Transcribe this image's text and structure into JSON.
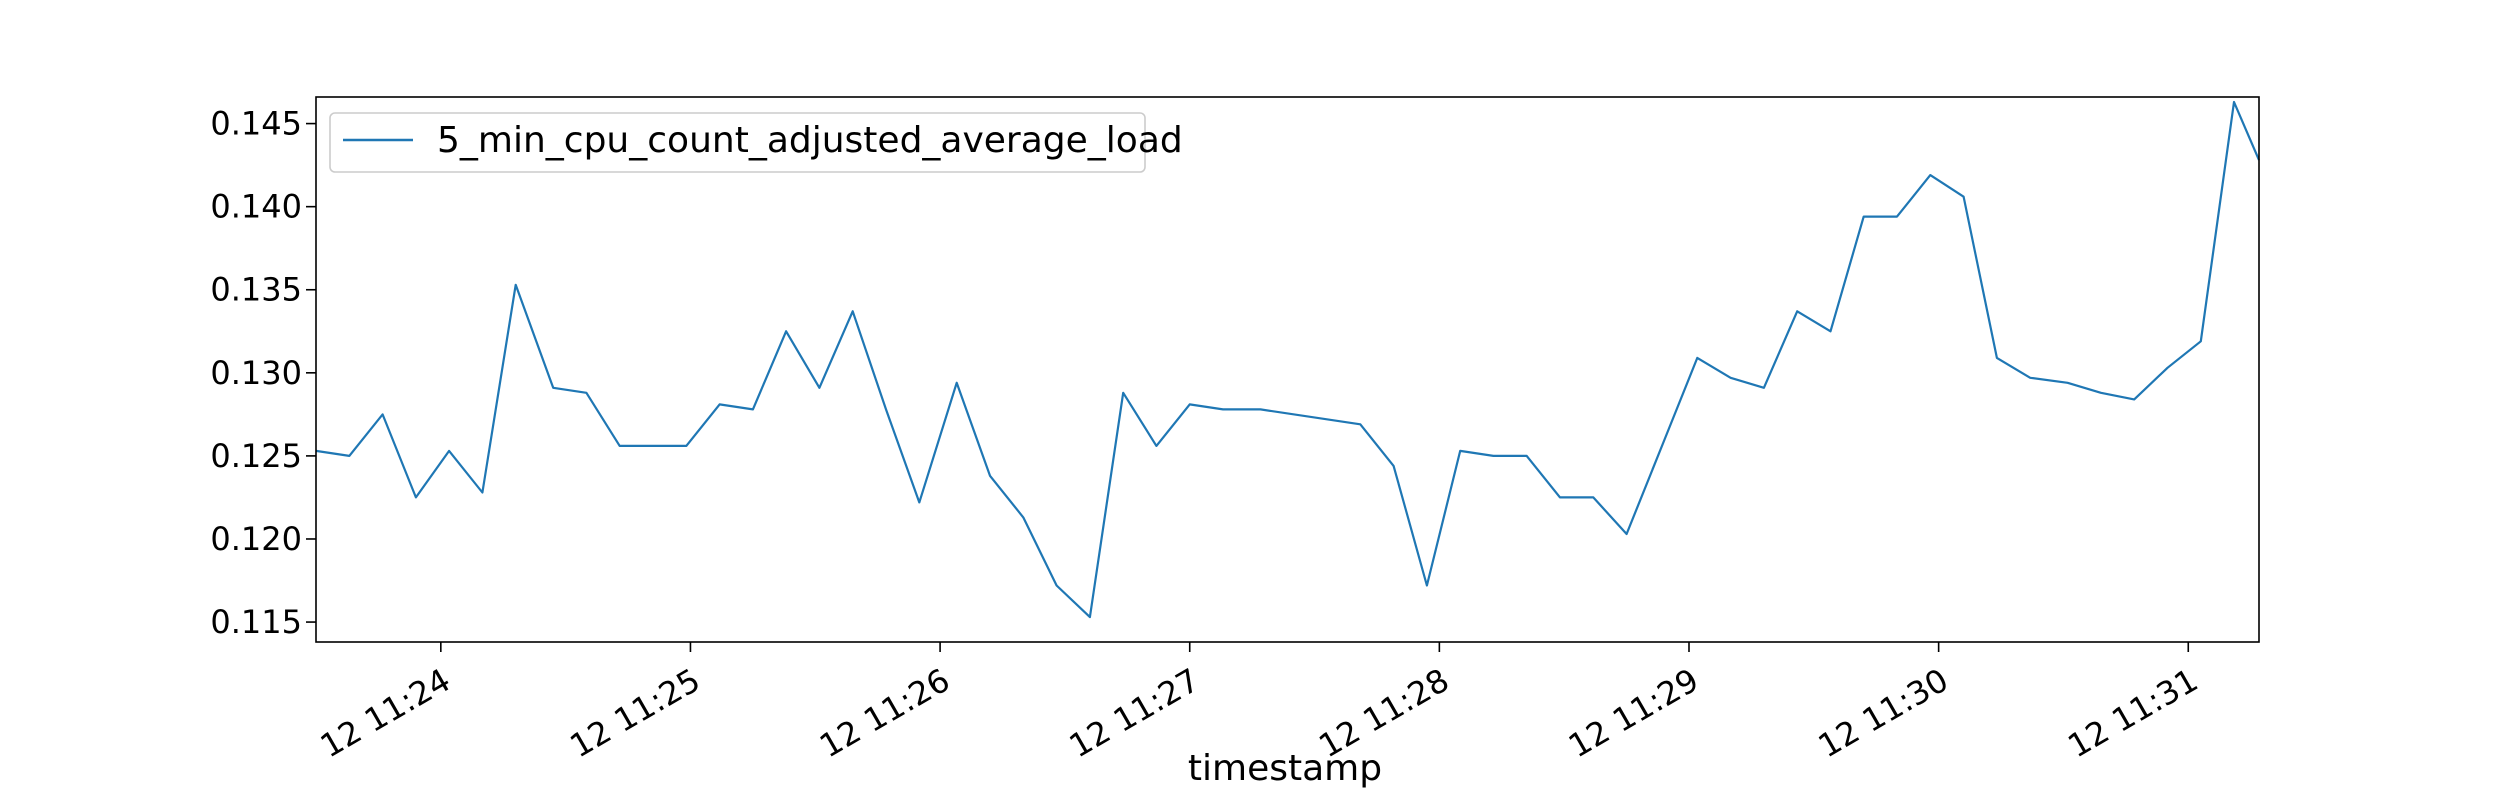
{
  "chart_data": {
    "type": "line",
    "title": "",
    "xlabel": "timestamp",
    "ylabel": "",
    "x_ticks": [
      "12 11:24",
      "12 11:25",
      "12 11:26",
      "12 11:27",
      "12 11:28",
      "12 11:29",
      "12 11:30",
      "12 11:31"
    ],
    "y_ticks": [
      "0.115",
      "0.120",
      "0.125",
      "0.130",
      "0.135",
      "0.140",
      "0.145"
    ],
    "xlim": [
      "12 11:23:30",
      "12 11:31:17"
    ],
    "ylim": [
      0.1138,
      0.1466
    ],
    "grid": false,
    "legend_position": "upper-left",
    "series": [
      {
        "name": "5_min_cpu_count_adjusted_average_load",
        "color": "#1f77b4",
        "points": [
          [
            "12 11:23:30",
            0.1253
          ],
          [
            "12 11:23:38",
            0.125
          ],
          [
            "12 11:23:46",
            0.1275
          ],
          [
            "12 11:23:54",
            0.1225
          ],
          [
            "12 11:24:02",
            0.1253
          ],
          [
            "12 11:24:10",
            0.1228
          ],
          [
            "12 11:24:18",
            0.1353
          ],
          [
            "12 11:24:27",
            0.1291
          ],
          [
            "12 11:24:35",
            0.1288
          ],
          [
            "12 11:24:43",
            0.1256
          ],
          [
            "12 11:24:51",
            0.1256
          ],
          [
            "12 11:24:59",
            0.1256
          ],
          [
            "12 11:25:07",
            0.1281
          ],
          [
            "12 11:25:15",
            0.1278
          ],
          [
            "12 11:25:23",
            0.1325
          ],
          [
            "12 11:25:31",
            0.1291
          ],
          [
            "12 11:25:39",
            0.1337
          ],
          [
            "12 11:25:47",
            0.1278
          ],
          [
            "12 11:25:55",
            0.1222
          ],
          [
            "12 11:26:04",
            0.1294
          ],
          [
            "12 11:26:12",
            0.1238
          ],
          [
            "12 11:26:20",
            0.1213
          ],
          [
            "12 11:26:28",
            0.1172
          ],
          [
            "12 11:26:36",
            0.1153
          ],
          [
            "12 11:26:44",
            0.1288
          ],
          [
            "12 11:26:52",
            0.1256
          ],
          [
            "12 11:27:00",
            0.1281
          ],
          [
            "12 11:27:08",
            0.1278
          ],
          [
            "12 11:27:17",
            0.1278
          ],
          [
            "12 11:27:41",
            0.1269
          ],
          [
            "12 11:27:49",
            0.1244
          ],
          [
            "12 11:27:57",
            0.1172
          ],
          [
            "12 11:28:05",
            0.1253
          ],
          [
            "12 11:28:13",
            0.125
          ],
          [
            "12 11:28:21",
            0.125
          ],
          [
            "12 11:28:29",
            0.1225
          ],
          [
            "12 11:28:37",
            0.1225
          ],
          [
            "12 11:28:45",
            0.1203
          ],
          [
            "12 11:28:54",
            0.1259
          ],
          [
            "12 11:29:02",
            0.1309
          ],
          [
            "12 11:29:10",
            0.1297
          ],
          [
            "12 11:29:18",
            0.1291
          ],
          [
            "12 11:29:26",
            0.1337
          ],
          [
            "12 11:29:34",
            0.1325
          ],
          [
            "12 11:29:42",
            0.1394
          ],
          [
            "12 11:29:50",
            0.1394
          ],
          [
            "12 11:29:58",
            0.1419
          ],
          [
            "12 11:30:06",
            0.1406
          ],
          [
            "12 11:30:14",
            0.1309
          ],
          [
            "12 11:30:22",
            0.1297
          ],
          [
            "12 11:30:31",
            0.1294
          ],
          [
            "12 11:30:39",
            0.1288
          ],
          [
            "12 11:30:47",
            0.1284
          ],
          [
            "12 11:30:55",
            0.1303
          ],
          [
            "12 11:31:03",
            0.1319
          ],
          [
            "12 11:31:11",
            0.1463
          ],
          [
            "12 11:31:17",
            0.1428
          ]
        ]
      }
    ]
  }
}
